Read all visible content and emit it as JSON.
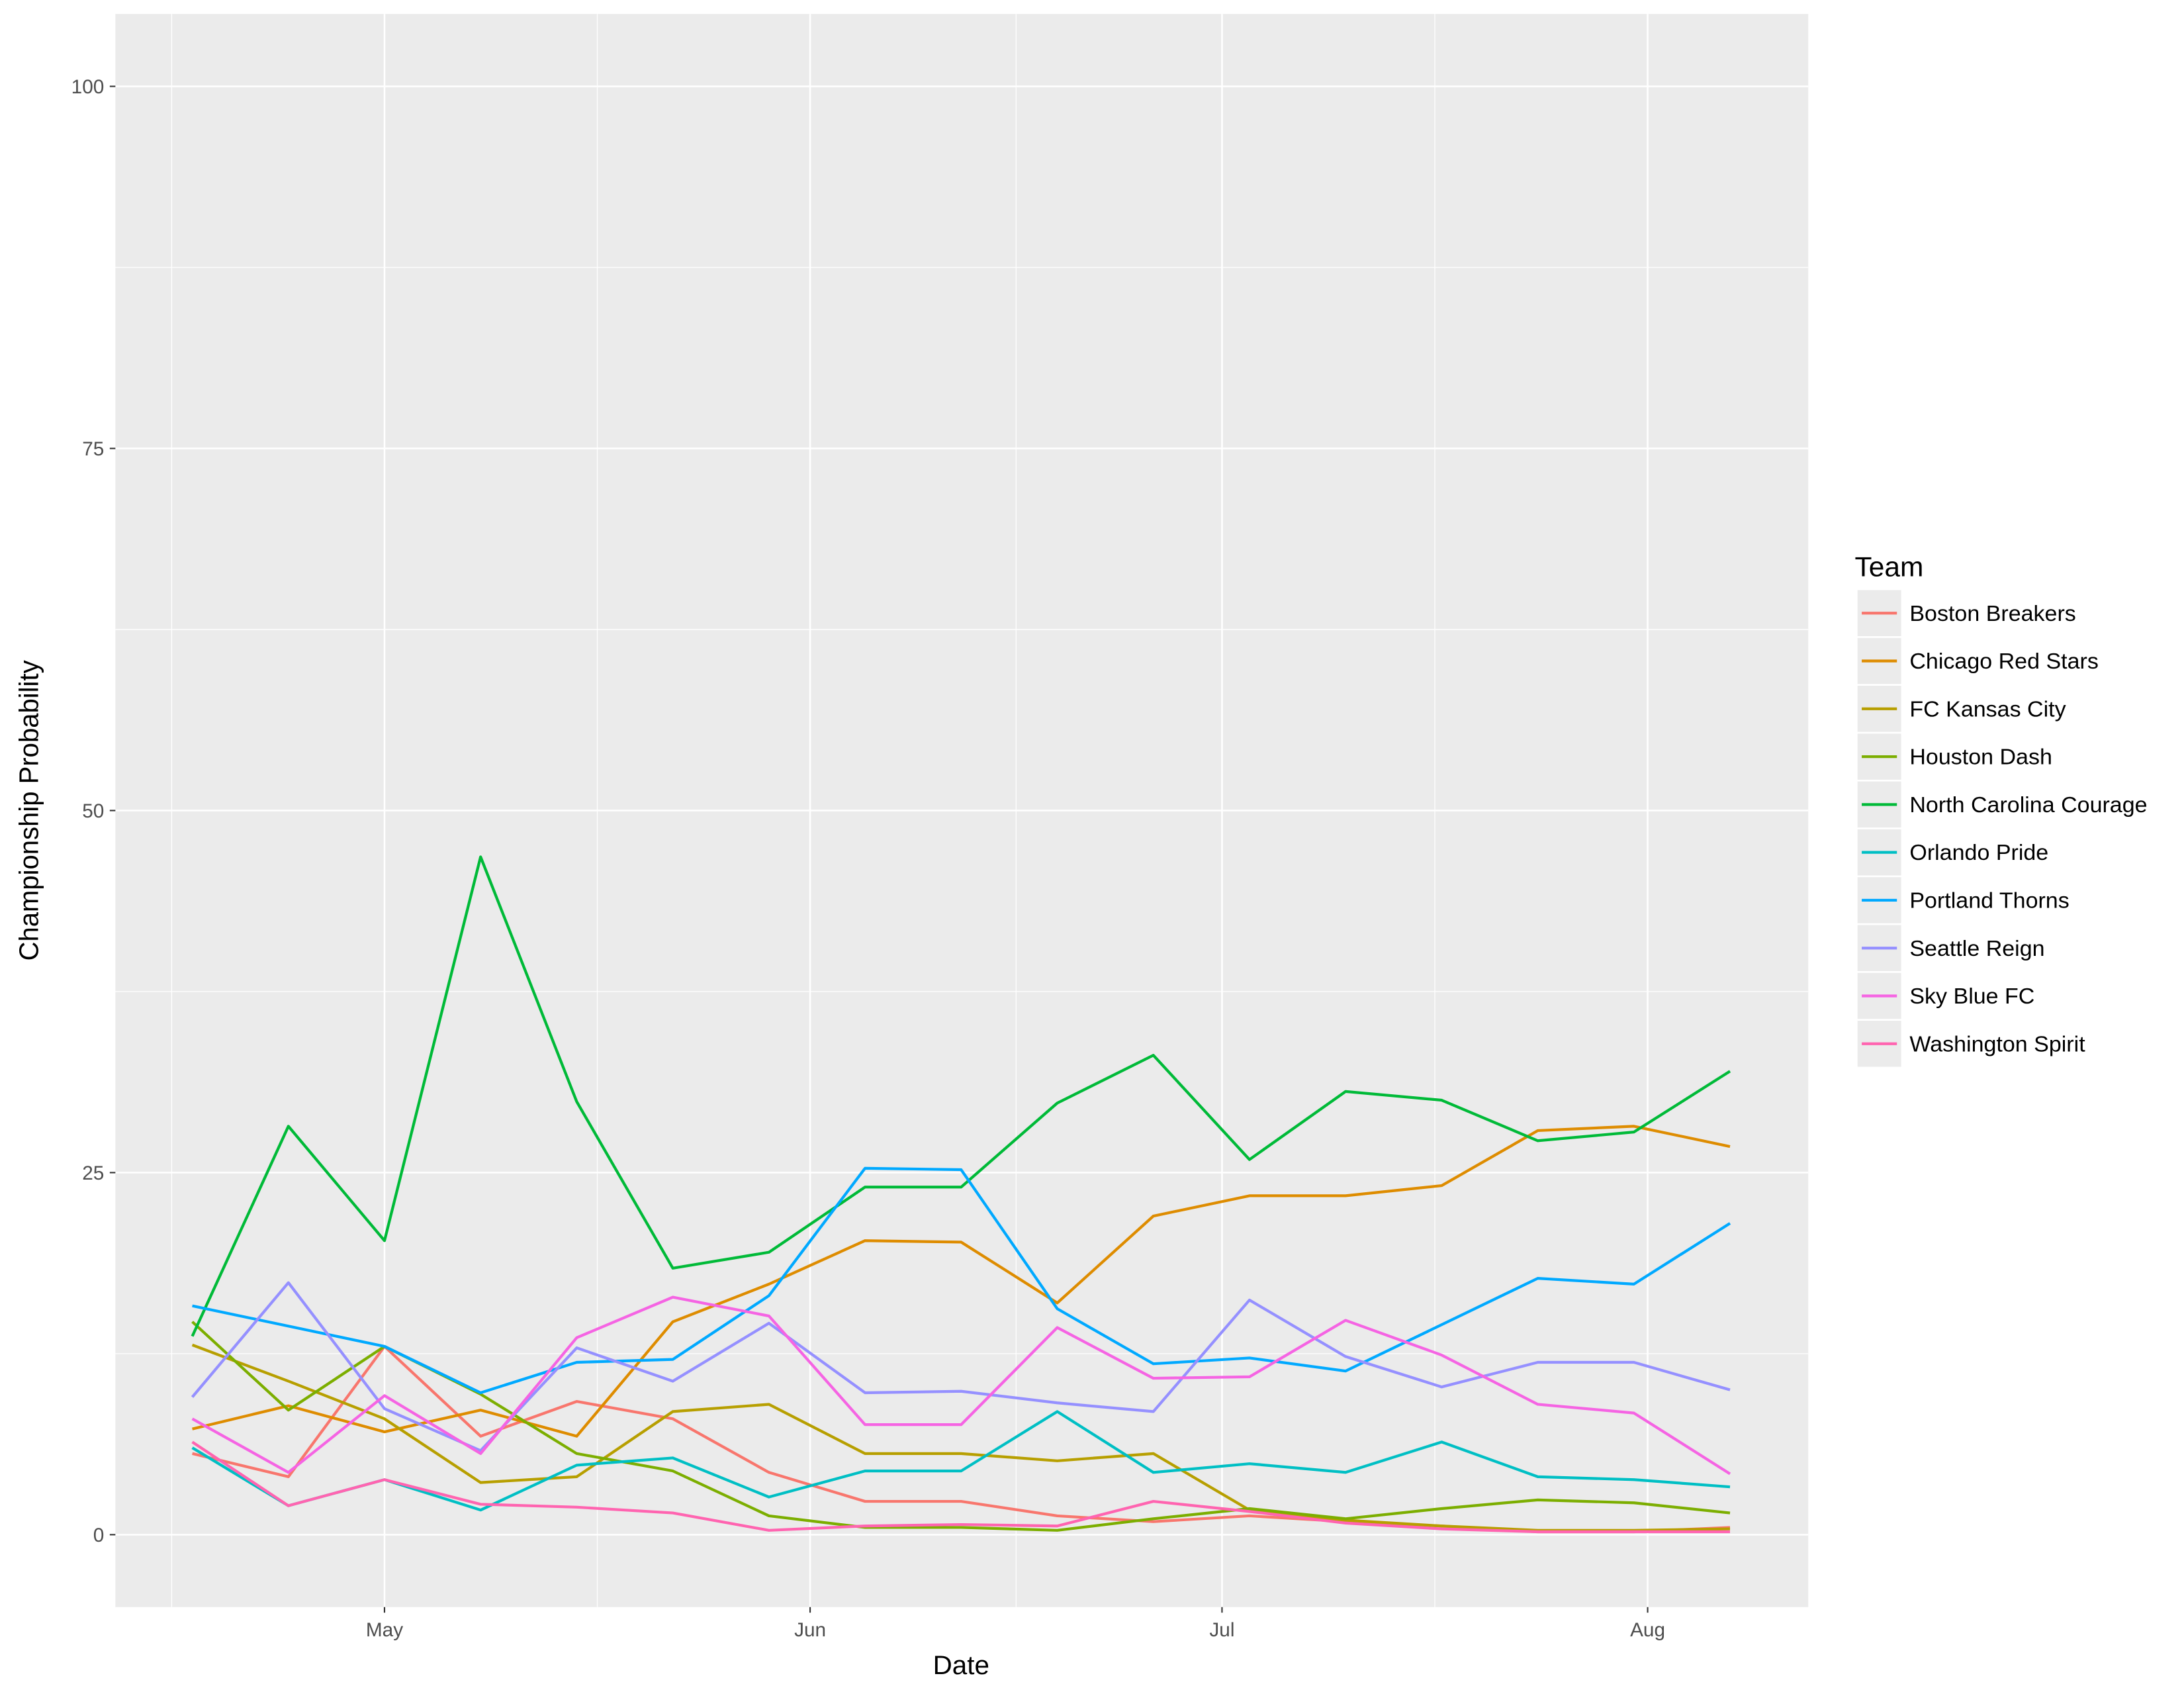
{
  "chart_data": {
    "type": "line",
    "x_label": "Date",
    "y_label": "Championship Probability",
    "legend_title": "Team",
    "legend_position": "right",
    "grid": true,
    "xlim": [
      101.4,
      224.7
    ],
    "xticks": [
      {
        "value": 121,
        "label": "May"
      },
      {
        "value": 152,
        "label": "Jun"
      },
      {
        "value": 182,
        "label": "Jul"
      },
      {
        "value": 213,
        "label": "Aug"
      }
    ],
    "ylim": [
      -5,
      105
    ],
    "yticks": [
      0,
      25,
      50,
      75,
      100
    ],
    "x": [
      107,
      114,
      121,
      128,
      135,
      142,
      149,
      156,
      163,
      170,
      177,
      184,
      191,
      198,
      205,
      212,
      219
    ],
    "series": [
      {
        "name": "Boston Breakers",
        "color": "#F8766D",
        "values": [
          5.6,
          4.0,
          13.0,
          6.8,
          9.2,
          8.0,
          4.3,
          2.3,
          2.3,
          1.3,
          0.9,
          1.3,
          0.9,
          0.6,
          0.2,
          0.2,
          0.5
        ]
      },
      {
        "name": "Chicago Red Stars",
        "color": "#DE8C00",
        "values": [
          7.3,
          8.9,
          7.1,
          8.6,
          6.8,
          14.7,
          17.3,
          20.3,
          20.2,
          16.0,
          22.0,
          23.4,
          23.4,
          24.1,
          27.9,
          28.2,
          26.8
        ]
      },
      {
        "name": "FC Kansas City",
        "color": "#B79F00",
        "values": [
          13.1,
          10.6,
          8.0,
          3.6,
          4.0,
          8.5,
          9.0,
          5.6,
          5.6,
          5.1,
          5.6,
          1.7,
          1.0,
          0.6,
          0.3,
          0.3,
          0.4
        ]
      },
      {
        "name": "Houston Dash",
        "color": "#7CAE00",
        "values": [
          14.7,
          8.6,
          13.0,
          9.7,
          5.6,
          4.4,
          1.3,
          0.5,
          0.5,
          0.3,
          1.1,
          1.8,
          1.1,
          1.8,
          2.4,
          2.2,
          1.5
        ]
      },
      {
        "name": "North Carolina Courage",
        "color": "#00BA38",
        "values": [
          13.7,
          28.2,
          20.3,
          46.8,
          29.9,
          18.4,
          19.5,
          24.0,
          24.0,
          29.8,
          33.1,
          25.9,
          30.6,
          30.0,
          27.2,
          27.8,
          32.0
        ]
      },
      {
        "name": "Orlando Pride",
        "color": "#00BFC4",
        "values": [
          6.0,
          2.0,
          3.8,
          1.7,
          4.8,
          5.3,
          2.6,
          4.4,
          4.4,
          8.5,
          4.3,
          4.9,
          4.3,
          6.4,
          4.0,
          3.8,
          3.3
        ]
      },
      {
        "name": "Portland Thorns",
        "color": "#00A9FF",
        "values": [
          15.8,
          14.4,
          13.0,
          9.8,
          11.9,
          12.1,
          16.5,
          25.3,
          25.2,
          15.6,
          11.8,
          12.2,
          11.3,
          14.5,
          17.7,
          17.3,
          21.5
        ]
      },
      {
        "name": "Seattle Reign",
        "color": "#9590FF",
        "values": [
          9.5,
          17.4,
          8.7,
          5.8,
          12.9,
          10.6,
          14.6,
          9.8,
          9.9,
          9.1,
          8.5,
          16.2,
          12.3,
          10.2,
          11.9,
          11.9,
          10.0
        ]
      },
      {
        "name": "Sky Blue FC",
        "color": "#F564E3",
        "values": [
          8.0,
          4.3,
          9.6,
          5.6,
          13.6,
          16.4,
          15.1,
          7.6,
          7.6,
          14.3,
          10.8,
          10.9,
          14.8,
          12.4,
          9.0,
          8.4,
          4.2
        ]
      },
      {
        "name": "Washington Spirit",
        "color": "#FF64B0",
        "values": [
          6.4,
          2.0,
          3.8,
          2.1,
          1.9,
          1.5,
          0.3,
          0.6,
          0.7,
          0.6,
          2.3,
          1.6,
          0.8,
          0.4,
          0.2,
          0.2,
          0.2
        ]
      }
    ]
  }
}
